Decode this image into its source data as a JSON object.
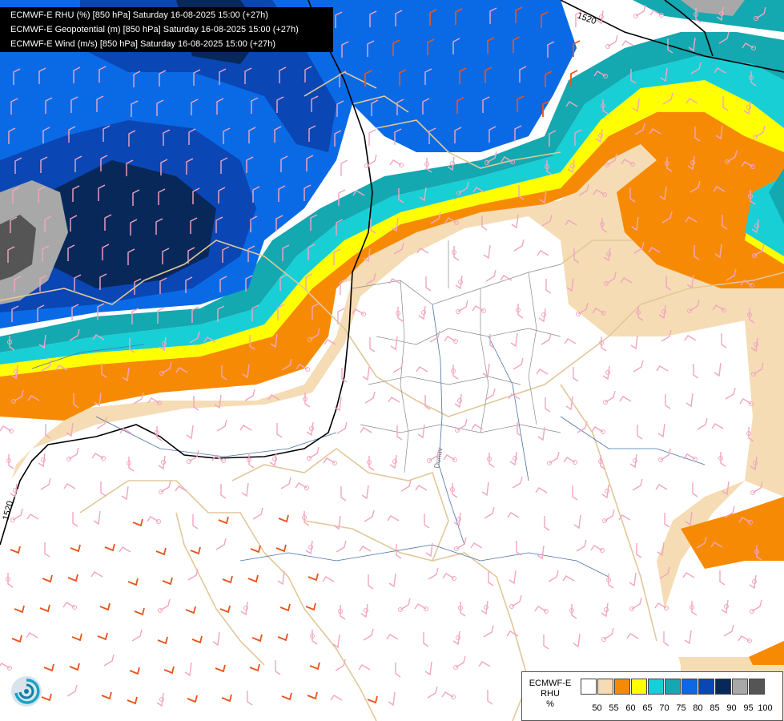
{
  "header": {
    "line1": "ECMWF-E RHU (%) [850 hPa] Saturday 16-08-2025 15:00 (+27h)",
    "line2": "ECMWF-E Geopotential (m) [850 hPa] Saturday 16-08-2025 15:00 (+27h)",
    "line3": "ECMWF-E Wind (m/s) [850 hPa] Saturday 16-08-2025 15:00 (+27h)"
  },
  "contours": {
    "label_a": "1520",
    "label_b": "1520"
  },
  "map_text": {
    "river_label": "Dunav"
  },
  "legend": {
    "title_line1": "ECMWF-E",
    "title_line2": "RHU",
    "title_line3": "%",
    "colors": [
      "#ffffff",
      "#f5dcb4",
      "#f78a05",
      "#ffff00",
      "#18cfd6",
      "#14a8b0",
      "#0a6ae6",
      "#0a46b4",
      "#08285a",
      "#a8a8a8",
      "#555555"
    ],
    "ticks": [
      "50",
      "55",
      "60",
      "65",
      "70",
      "75",
      "80",
      "85",
      "90",
      "95",
      "100"
    ]
  },
  "colors": {
    "barb_pink": "#f2a6c0",
    "barb_orange": "#e8531a",
    "border_tan": "#e0c89a",
    "river_blue": "#4a72a8",
    "contour_black": "#000000"
  },
  "icons": {
    "logo": "swirl-logo-icon"
  }
}
